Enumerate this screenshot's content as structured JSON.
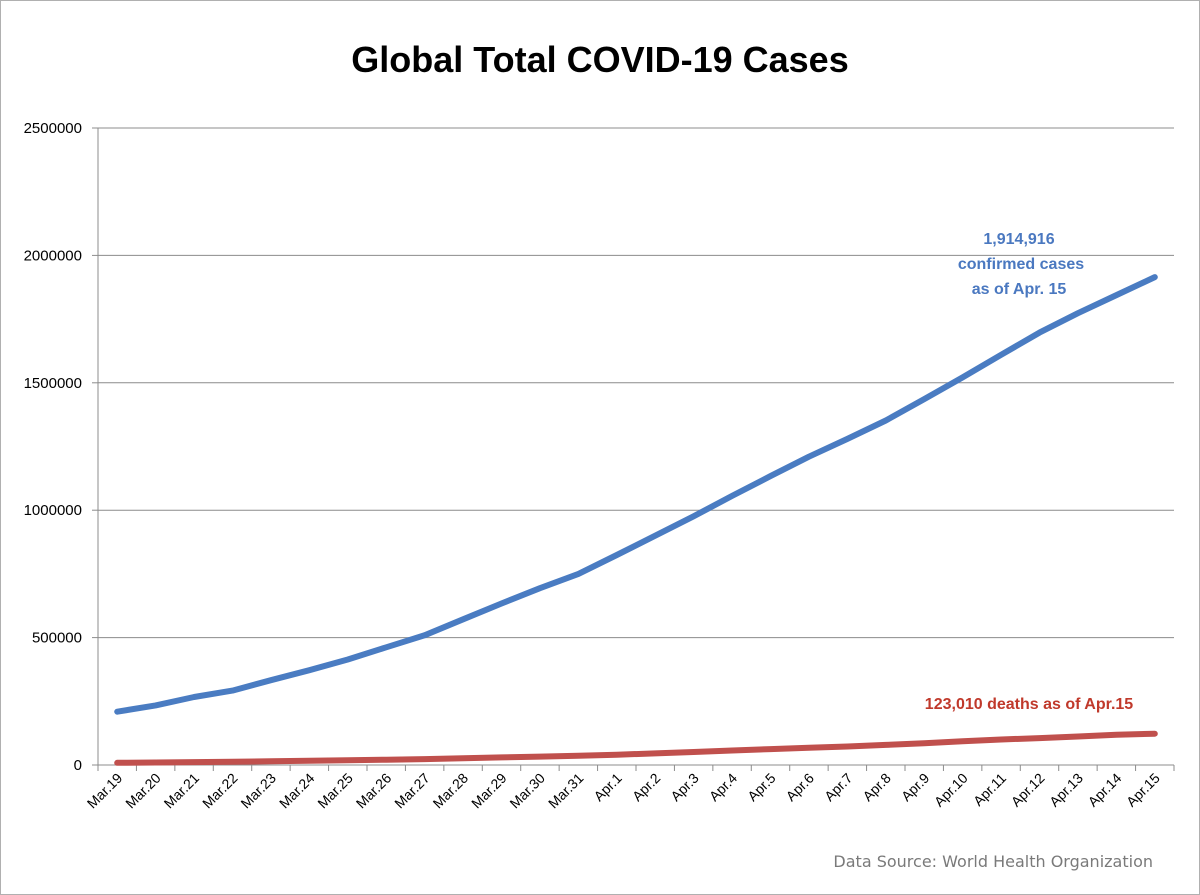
{
  "chart_data": {
    "type": "line",
    "title": "Global Total COVID-19 Cases",
    "xlabel": "",
    "ylabel": "",
    "ylim": [
      0,
      2500000
    ],
    "yticks": [
      "0",
      "500000",
      "1000000",
      "1500000",
      "2000000",
      "2500000"
    ],
    "grid": true,
    "legend": "none",
    "categories": [
      "Mar.19",
      "Mar.20",
      "Mar.21",
      "Mar.22",
      "Mar.23",
      "Mar.24",
      "Mar.25",
      "Mar.26",
      "Mar.27",
      "Mar.28",
      "Mar.29",
      "Mar.30",
      "Mar.31",
      "Apr.1",
      "Apr.2",
      "Apr.3",
      "Apr.4",
      "Apr.5",
      "Apr.6",
      "Apr.7",
      "Apr.8",
      "Apr.9",
      "Apr.10",
      "Apr.11",
      "Apr.12",
      "Apr.13",
      "Apr.14",
      "Apr.15"
    ],
    "series": [
      {
        "color": "#4a7cc2",
        "values": [
          209000,
          234000,
          267000,
          292000,
          333000,
          372000,
          414000,
          462000,
          509000,
          572000,
          634000,
          694000,
          750000,
          824000,
          900000,
          976000,
          1056000,
          1134000,
          1210000,
          1280000,
          1352000,
          1436000,
          1521000,
          1610000,
          1697000,
          1773000,
          1844000,
          1914916
        ]
      },
      {
        "color": "#c0504d",
        "values": [
          8800,
          9800,
          11200,
          12700,
          14500,
          16300,
          18400,
          20800,
          23300,
          26500,
          29900,
          33000,
          36500,
          40500,
          45500,
          51000,
          57000,
          62500,
          67500,
          72500,
          79000,
          85500,
          93000,
          100000,
          105500,
          112000,
          118500,
          123010
        ]
      }
    ],
    "annotations": {
      "cases_lines": [
        "1,914,916",
        "confirmed cases",
        "as of Apr. 15"
      ],
      "deaths": "123,010 deaths as of Apr.15",
      "source": "Data Source: World Health Organization"
    }
  }
}
